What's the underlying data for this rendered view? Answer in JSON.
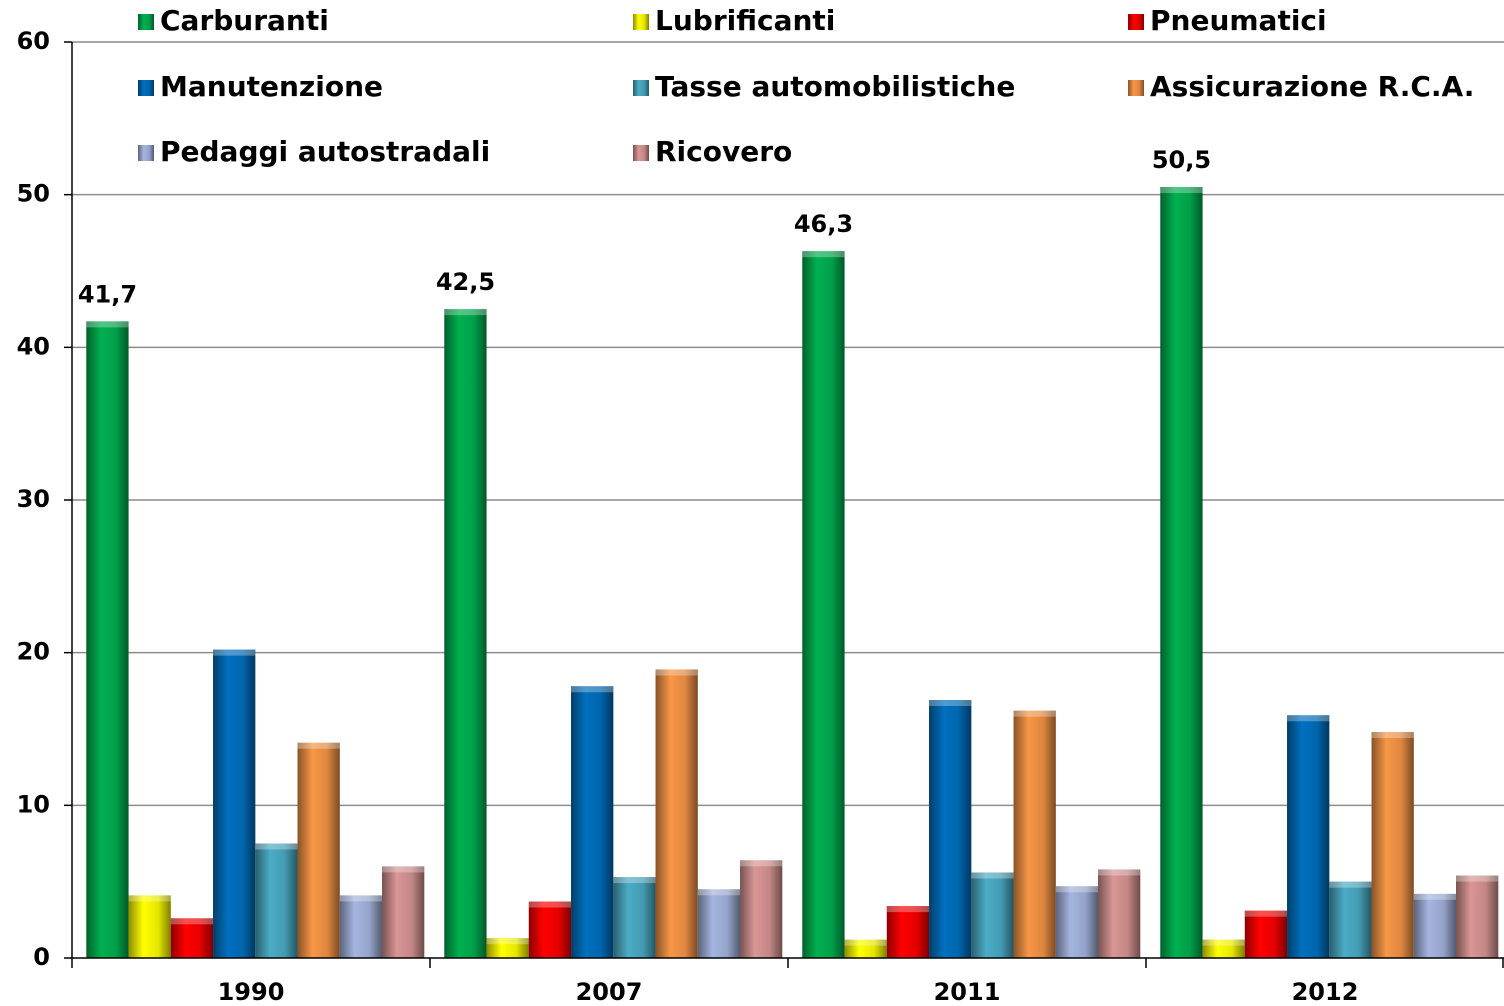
{
  "chart_data": {
    "type": "bar",
    "categories": [
      "1990",
      "2007",
      "2011",
      "2012"
    ],
    "series": [
      {
        "name": "Carburanti",
        "color": "#00b050",
        "values": [
          41.7,
          42.5,
          46.3,
          50.5
        ],
        "value_labels": [
          "41,7",
          "42,5",
          "46,3",
          "50,5"
        ]
      },
      {
        "name": "Lubrificanti",
        "color": "#ffff00",
        "values": [
          4.1,
          1.3,
          1.2,
          1.2
        ]
      },
      {
        "name": "Pneumatici",
        "color": "#ff0000",
        "values": [
          2.6,
          3.7,
          3.4,
          3.1
        ]
      },
      {
        "name": "Manutenzione",
        "color": "#0070c0",
        "values": [
          20.2,
          17.8,
          16.9,
          15.9
        ]
      },
      {
        "name": "Tasse automobilistiche",
        "color": "#4bacc6",
        "values": [
          7.5,
          5.3,
          5.6,
          5.0
        ]
      },
      {
        "name": "Assicurazione R.C.A.",
        "color": "#f79646",
        "values": [
          14.1,
          18.9,
          16.2,
          14.8
        ]
      },
      {
        "name": "Pedaggi autostradali",
        "color": "#a5b5e0",
        "values": [
          4.1,
          4.5,
          4.7,
          4.2
        ]
      },
      {
        "name": "Ricovero",
        "color": "#d99694",
        "values": [
          6.0,
          6.4,
          5.8,
          5.4
        ]
      }
    ],
    "ylim": [
      0,
      60
    ],
    "yticks": [
      0,
      10,
      20,
      30,
      40,
      50,
      60
    ],
    "grid": true,
    "legend": "top"
  }
}
